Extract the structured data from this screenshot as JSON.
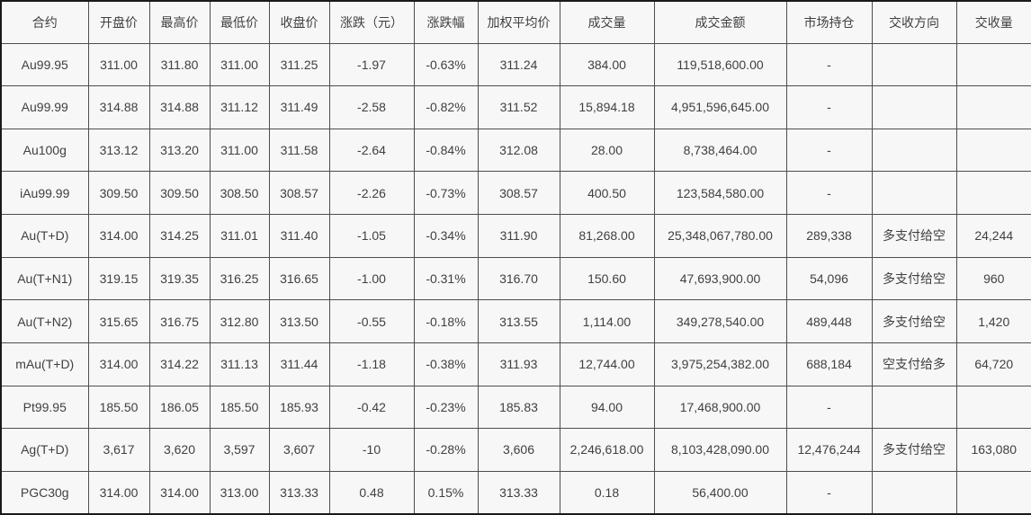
{
  "chart_data": {
    "type": "table",
    "title": "",
    "columns": [
      "合约",
      "开盘价",
      "最高价",
      "最低价",
      "收盘价",
      "涨跌（元）",
      "涨跌幅",
      "加权平均价",
      "成交量",
      "成交金额",
      "市场持仓",
      "交收方向",
      "交收量"
    ],
    "rows": [
      [
        "Au99.95",
        "311.00",
        "311.80",
        "311.00",
        "311.25",
        "-1.97",
        "-0.63%",
        "311.24",
        "384.00",
        "119,518,600.00",
        "-",
        "",
        ""
      ],
      [
        "Au99.99",
        "314.88",
        "314.88",
        "311.12",
        "311.49",
        "-2.58",
        "-0.82%",
        "311.52",
        "15,894.18",
        "4,951,596,645.00",
        "-",
        "",
        ""
      ],
      [
        "Au100g",
        "313.12",
        "313.20",
        "311.00",
        "311.58",
        "-2.64",
        "-0.84%",
        "312.08",
        "28.00",
        "8,738,464.00",
        "-",
        "",
        ""
      ],
      [
        "iAu99.99",
        "309.50",
        "309.50",
        "308.50",
        "308.57",
        "-2.26",
        "-0.73%",
        "308.57",
        "400.50",
        "123,584,580.00",
        "-",
        "",
        ""
      ],
      [
        "Au(T+D)",
        "314.00",
        "314.25",
        "311.01",
        "311.40",
        "-1.05",
        "-0.34%",
        "311.90",
        "81,268.00",
        "25,348,067,780.00",
        "289,338",
        "多支付给空",
        "24,244"
      ],
      [
        "Au(T+N1)",
        "319.15",
        "319.35",
        "316.25",
        "316.65",
        "-1.00",
        "-0.31%",
        "316.70",
        "150.60",
        "47,693,900.00",
        "54,096",
        "多支付给空",
        "960"
      ],
      [
        "Au(T+N2)",
        "315.65",
        "316.75",
        "312.80",
        "313.50",
        "-0.55",
        "-0.18%",
        "313.55",
        "1,114.00",
        "349,278,540.00",
        "489,448",
        "多支付给空",
        "1,420"
      ],
      [
        "mAu(T+D)",
        "314.00",
        "314.22",
        "311.13",
        "311.44",
        "-1.18",
        "-0.38%",
        "311.93",
        "12,744.00",
        "3,975,254,382.00",
        "688,184",
        "空支付给多",
        "64,720"
      ],
      [
        "Pt99.95",
        "185.50",
        "186.05",
        "185.50",
        "185.93",
        "-0.42",
        "-0.23%",
        "185.83",
        "94.00",
        "17,468,900.00",
        "-",
        "",
        ""
      ],
      [
        "Ag(T+D)",
        "3,617",
        "3,620",
        "3,597",
        "3,607",
        "-10",
        "-0.28%",
        "3,606",
        "2,246,618.00",
        "8,103,428,090.00",
        "12,476,244",
        "多支付给空",
        "163,080"
      ],
      [
        "PGC30g",
        "314.00",
        "314.00",
        "313.00",
        "313.33",
        "0.48",
        "0.15%",
        "313.33",
        "0.18",
        "56,400.00",
        "-",
        "",
        ""
      ]
    ]
  },
  "colors": {
    "cell_background": "#f7f7f7",
    "grid_line": "#4d4d4d",
    "outer_border": "#1a1a1a",
    "text": "#404040"
  }
}
